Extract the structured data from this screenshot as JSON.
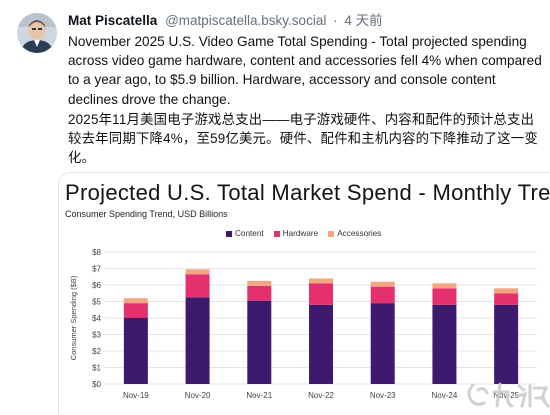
{
  "post": {
    "author_name": "Mat Piscatella",
    "author_handle": "@matpiscatella.bsky.social",
    "separator": "·",
    "time": "4 天前",
    "text": "November 2025 U.S. Video Game Total Spending - Total projected spending across video game hardware, content and accessories fell 4% when compared to a year ago, to $5.9 billion. Hardware, accessory and console content declines drove the change.",
    "translation": "2025年11月美国电子游戏总支出——电子游戏硬件、内容和配件的预计总支出较去年同期下降4%，至59亿美元。硬件、配件和主机内容的下降推动了这一变化。"
  },
  "colors": {
    "content": "#3d1a6e",
    "hardware": "#e4306f",
    "accessories": "#f4a582",
    "grid": "#e4e4e4"
  },
  "chart_data": {
    "type": "bar",
    "stacked": true,
    "title": "Projected U.S. Total Market Spend - Monthly Trend",
    "subtitle": "Consumer Spending Trend, USD Billions",
    "ylabel": "Consumer Spending ($B)",
    "xlabel": "",
    "ylim": [
      0,
      8
    ],
    "yticks": [
      "$0",
      "$1",
      "$2",
      "$3",
      "$4",
      "$5",
      "$6",
      "$7",
      "$8"
    ],
    "grid": true,
    "legend_position": "top",
    "categories": [
      "Nov-19",
      "Nov-20",
      "Nov-21",
      "Nov-22",
      "Nov-23",
      "Nov-24",
      "Nov-25"
    ],
    "series": [
      {
        "name": "Content",
        "values": [
          4.0,
          5.25,
          5.05,
          4.8,
          4.9,
          4.8,
          4.8
        ]
      },
      {
        "name": "Hardware",
        "values": [
          0.9,
          1.4,
          0.9,
          1.3,
          1.0,
          1.0,
          0.7
        ]
      },
      {
        "name": "Accessories",
        "values": [
          0.3,
          0.3,
          0.3,
          0.3,
          0.3,
          0.3,
          0.3
        ]
      }
    ]
  }
}
